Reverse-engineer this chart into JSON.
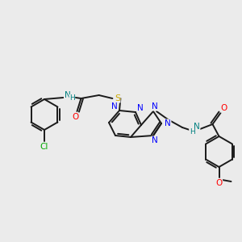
{
  "background_color": "#ebebeb",
  "bond_color": "#1a1a1a",
  "atom_colors": {
    "N": "#0000ff",
    "O": "#ff0000",
    "S": "#ccaa00",
    "Cl": "#00aa00",
    "NH": "#008080",
    "C": "#1a1a1a"
  },
  "figsize": [
    3.0,
    3.0
  ],
  "dpi": 100
}
